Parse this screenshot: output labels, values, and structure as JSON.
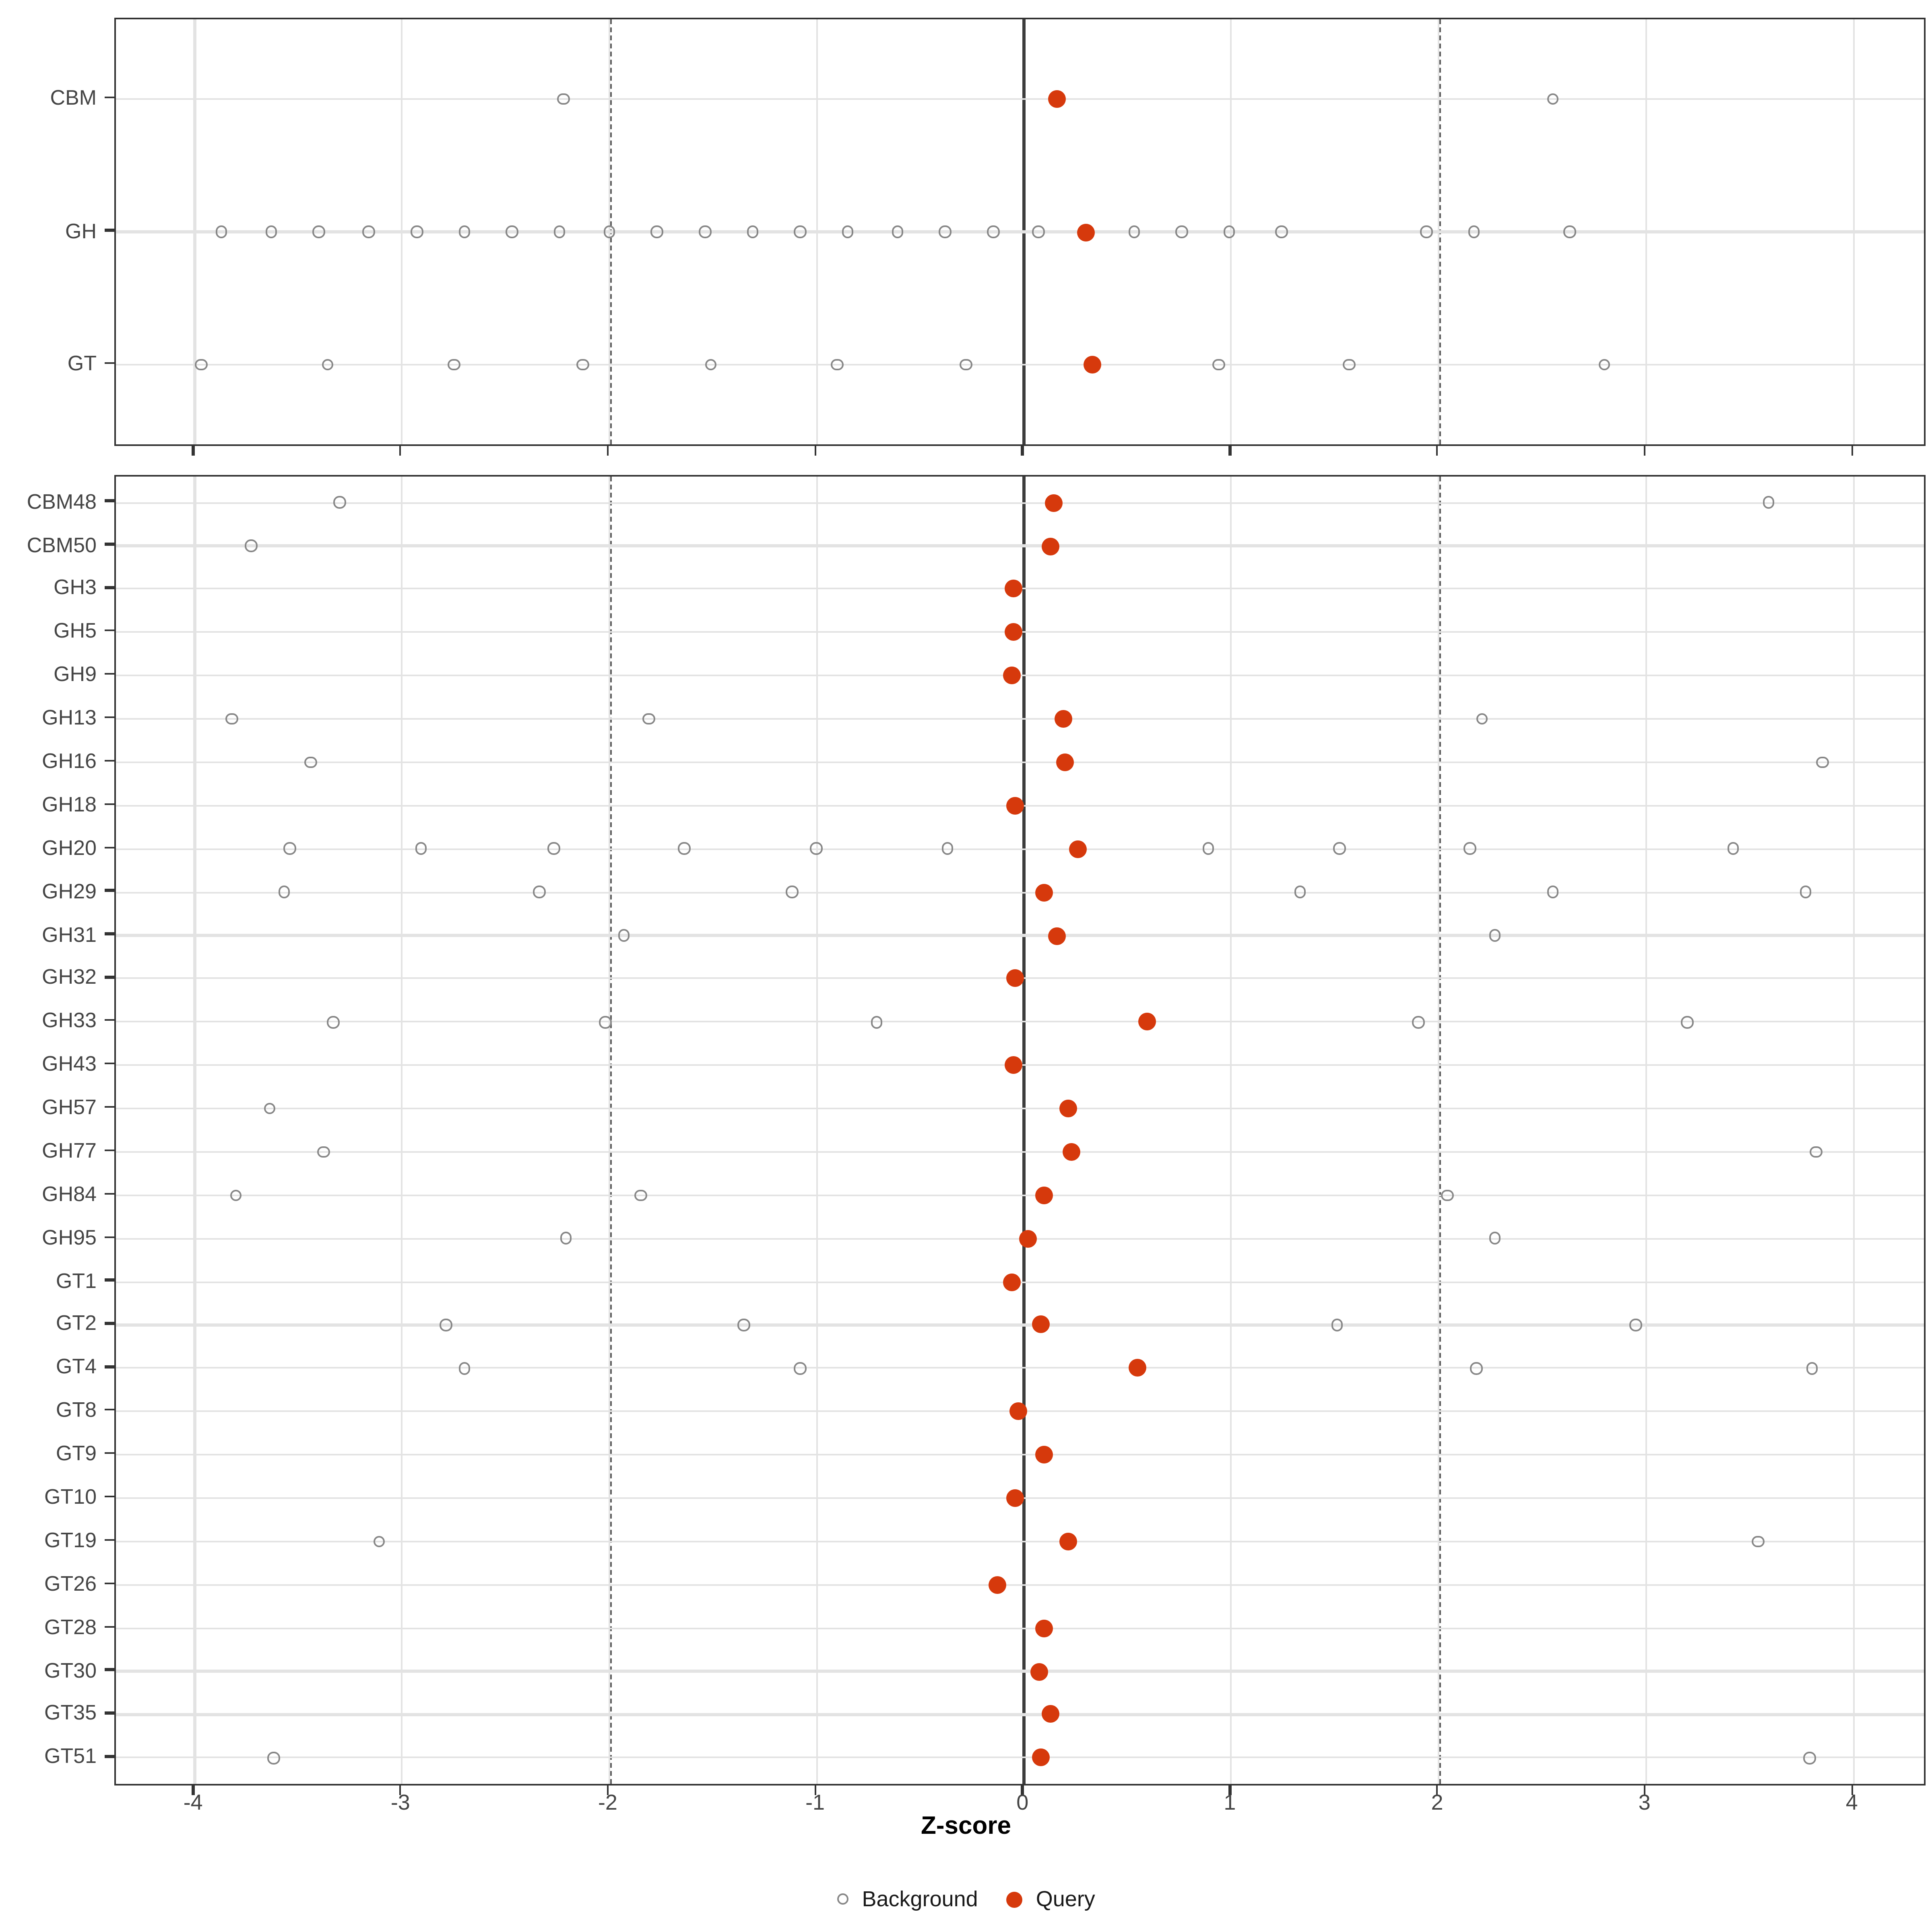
{
  "axis": {
    "label": "Z-score"
  },
  "legend": {
    "background_label": "Background",
    "query_label": "Query"
  },
  "colors": {
    "query_dot": "#d6390c",
    "background_stroke": "#878787",
    "grid": "#e3e3e3",
    "ref_dashed": "#5a5a5a",
    "ref_zero": "#3c3c3c",
    "axis_text": "#454545"
  },
  "chart_data": {
    "type": "scatter",
    "title": "",
    "xlabel": "Z-score",
    "x_ticks": [
      -4,
      -3,
      -2,
      -1,
      0,
      1,
      2,
      3,
      4
    ],
    "x_range": [
      -4.38,
      4.34
    ],
    "reference_lines": {
      "solid": [
        0
      ],
      "dashed": [
        -2,
        2
      ]
    },
    "legend_position": "bottom",
    "grid": true,
    "series_legend": [
      "Background",
      "Query"
    ],
    "panels": [
      {
        "name": "classes",
        "rows": [
          {
            "label": "CBM",
            "background": [
              -2.22,
              2.55
            ],
            "query": 0.16
          },
          {
            "label": "GH",
            "background": [
              -3.87,
              -3.63,
              -3.4,
              -3.16,
              -2.93,
              -2.7,
              -2.47,
              -2.24,
              -2.0,
              -1.77,
              -1.54,
              -1.31,
              -1.08,
              -0.85,
              -0.61,
              -0.38,
              -0.15,
              0.07,
              0.53,
              0.76,
              0.99,
              1.24,
              1.94,
              2.17,
              2.63
            ],
            "query": 0.3
          },
          {
            "label": "GT",
            "background": [
              -3.97,
              -3.36,
              -2.75,
              -2.13,
              -1.51,
              -0.9,
              -0.28,
              0.94,
              1.57,
              2.8
            ],
            "query": 0.33
          }
        ]
      },
      {
        "name": "families",
        "rows": [
          {
            "label": "CBM48",
            "background": [
              -3.3,
              3.59
            ],
            "query": 0.14
          },
          {
            "label": "CBM50",
            "background": [
              -3.73
            ],
            "query": 0.13
          },
          {
            "label": "GH3",
            "background": [],
            "query": -0.05
          },
          {
            "label": "GH5",
            "background": [],
            "query": -0.05
          },
          {
            "label": "GH9",
            "background": [],
            "query": -0.06
          },
          {
            "label": "GH13",
            "background": [
              -3.82,
              -1.81,
              2.21
            ],
            "query": 0.19
          },
          {
            "label": "GH16",
            "background": [
              -3.44,
              3.85
            ],
            "query": 0.2
          },
          {
            "label": "GH18",
            "background": [],
            "query": -0.04
          },
          {
            "label": "GH20",
            "background": [
              -3.54,
              -2.91,
              -2.27,
              -1.64,
              -1.0,
              -0.37,
              0.89,
              1.52,
              2.15,
              3.42
            ],
            "query": 0.26
          },
          {
            "label": "GH29",
            "background": [
              -3.57,
              -2.34,
              -1.12,
              1.33,
              2.55,
              3.77
            ],
            "query": 0.1
          },
          {
            "label": "GH31",
            "background": [
              -1.93,
              2.27
            ],
            "query": 0.16
          },
          {
            "label": "GH32",
            "background": [],
            "query": -0.04
          },
          {
            "label": "GH33",
            "background": [
              -3.33,
              -2.02,
              -0.71,
              1.9,
              3.2
            ],
            "query": 0.59
          },
          {
            "label": "GH43",
            "background": [],
            "query": -0.05
          },
          {
            "label": "GH57",
            "background": [
              -3.64
            ],
            "query": 0.21
          },
          {
            "label": "GH77",
            "background": [
              -3.38,
              3.82
            ],
            "query": 0.23
          },
          {
            "label": "GH84",
            "background": [
              -3.8,
              -1.85,
              2.04
            ],
            "query": 0.1
          },
          {
            "label": "GH95",
            "background": [
              -2.21,
              2.27
            ],
            "query": 0.02
          },
          {
            "label": "GT1",
            "background": [],
            "query": -0.06
          },
          {
            "label": "GT2",
            "background": [
              -2.79,
              -1.35,
              1.51,
              2.95
            ],
            "query": 0.08
          },
          {
            "label": "GT4",
            "background": [
              -2.7,
              -1.08,
              2.18,
              3.8
            ],
            "query": 0.55
          },
          {
            "label": "GT8",
            "background": [],
            "query": -0.03
          },
          {
            "label": "GT9",
            "background": [],
            "query": 0.1
          },
          {
            "label": "GT10",
            "background": [],
            "query": -0.04
          },
          {
            "label": "GT19",
            "background": [
              -3.11,
              3.54
            ],
            "query": 0.21
          },
          {
            "label": "GT26",
            "background": [],
            "query": -0.13
          },
          {
            "label": "GT28",
            "background": [],
            "query": 0.1
          },
          {
            "label": "GT30",
            "background": [],
            "query": 0.07
          },
          {
            "label": "GT35",
            "background": [],
            "query": 0.13
          },
          {
            "label": "GT51",
            "background": [
              -3.62,
              3.79
            ],
            "query": 0.08
          }
        ]
      }
    ]
  }
}
